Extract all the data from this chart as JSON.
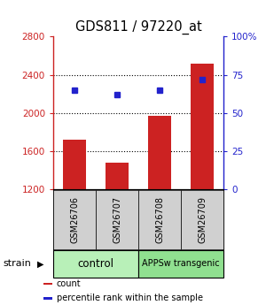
{
  "title": "GDS811 / 97220_at",
  "samples": [
    "GSM26706",
    "GSM26707",
    "GSM26708",
    "GSM26709"
  ],
  "counts": [
    1720,
    1480,
    1970,
    2520
  ],
  "percentiles": [
    65,
    62,
    65,
    72
  ],
  "ylim_left": [
    1200,
    2800
  ],
  "ylim_right": [
    0,
    100
  ],
  "yticks_left": [
    1200,
    1600,
    2000,
    2400,
    2800
  ],
  "yticks_right": [
    0,
    25,
    50,
    75,
    100
  ],
  "ytick_labels_right": [
    "0",
    "25",
    "50",
    "75",
    "100%"
  ],
  "groups": [
    {
      "label": "control",
      "color": "#b8f0b8",
      "span": [
        0,
        2
      ]
    },
    {
      "label": "APPSw transgenic",
      "color": "#90e090",
      "span": [
        2,
        4
      ]
    }
  ],
  "bar_color": "#cc2222",
  "dot_color": "#2222cc",
  "left_axis_color": "#cc2222",
  "right_axis_color": "#2222cc",
  "sample_box_color": "#d0d0d0",
  "legend_items": [
    {
      "color": "#cc2222",
      "label": "count"
    },
    {
      "color": "#2222cc",
      "label": "percentile rank within the sample"
    }
  ],
  "strain_label": "strain",
  "bar_width": 0.55,
  "gridlines": [
    1600,
    2000,
    2400
  ],
  "fig_width": 3.0,
  "fig_height": 3.45
}
